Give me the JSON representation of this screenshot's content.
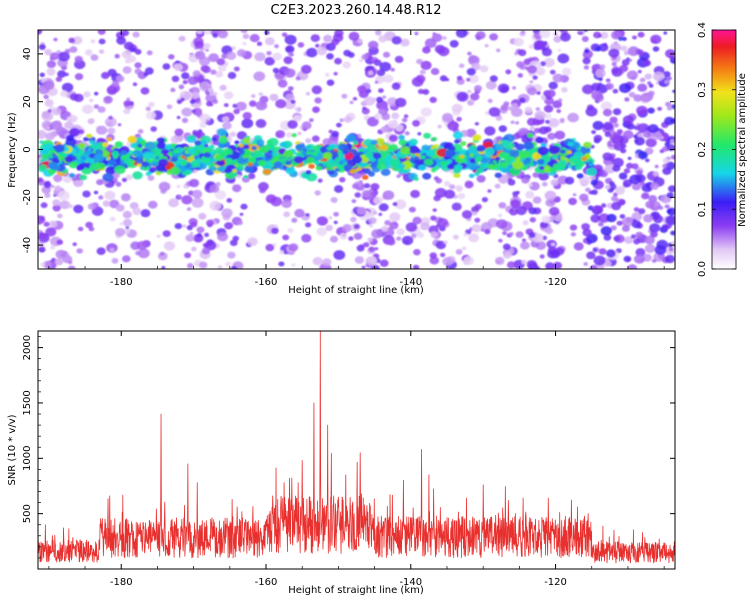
{
  "title": "C2E3.2023.260.14.48.R12",
  "chart_data": [
    {
      "type": "heatmap",
      "xlabel": "Height of straight line (km)",
      "ylabel": "Frequency (Hz)",
      "xlim": [
        -191.5,
        -103.5
      ],
      "ylim": [
        -50,
        50
      ],
      "xticks": [
        "-180",
        "-160",
        "-140",
        "-120"
      ],
      "yticks": [
        "40",
        "20",
        "0",
        "-20",
        "-40"
      ],
      "colorbar": {
        "label": "Normalized spectral amplitude",
        "range": [
          0,
          0.4
        ],
        "ticks": [
          "0.0",
          "0.1",
          "0.2",
          "0.3",
          "0.4"
        ]
      },
      "signal_band": {
        "x_range": [
          -191,
          -115
        ],
        "frequency_center": -3,
        "frequency_halfwidth": 8
      },
      "background_noise_level": 0.08
    },
    {
      "type": "line",
      "xlabel": "Height of straight line (km)",
      "ylabel": "SNR (10 * v/v)",
      "xlim": [
        -191.5,
        -103.5
      ],
      "ylim": [
        0,
        2150
      ],
      "xticks": [
        "-180",
        "-160",
        "-140",
        "-120"
      ],
      "yticks": [
        "2000",
        "1500",
        "1000",
        "500"
      ],
      "color": "#e8302e",
      "peaks": [
        {
          "x": -190.5,
          "y": 400
        },
        {
          "x": -181.6,
          "y": 660
        },
        {
          "x": -174.5,
          "y": 1400
        },
        {
          "x": -170.8,
          "y": 950
        },
        {
          "x": -169.5,
          "y": 780
        },
        {
          "x": -164.0,
          "y": 560
        },
        {
          "x": -157.5,
          "y": 780
        },
        {
          "x": -155.0,
          "y": 980
        },
        {
          "x": -153.4,
          "y": 1500
        },
        {
          "x": -152.5,
          "y": 2150
        },
        {
          "x": -151.5,
          "y": 1300
        },
        {
          "x": -149.0,
          "y": 850
        },
        {
          "x": -147.0,
          "y": 1050
        },
        {
          "x": -141.0,
          "y": 800
        },
        {
          "x": -138.5,
          "y": 1080
        },
        {
          "x": -137.5,
          "y": 850
        },
        {
          "x": -130.0,
          "y": 760
        },
        {
          "x": -126.5,
          "y": 620
        },
        {
          "x": -124.5,
          "y": 640
        },
        {
          "x": -121.0,
          "y": 640
        },
        {
          "x": -117.0,
          "y": 560
        },
        {
          "x": -115.5,
          "y": 500
        },
        {
          "x": -108.0,
          "y": 330
        }
      ],
      "baseline_segments": [
        {
          "x_from": -191.5,
          "x_to": -183,
          "mean": 160
        },
        {
          "x_from": -183,
          "x_to": -160,
          "mean": 280
        },
        {
          "x_from": -160,
          "x_to": -145,
          "mean": 400
        },
        {
          "x_from": -145,
          "x_to": -115,
          "mean": 290
        },
        {
          "x_from": -115,
          "x_to": -103.5,
          "mean": 150
        }
      ]
    }
  ]
}
